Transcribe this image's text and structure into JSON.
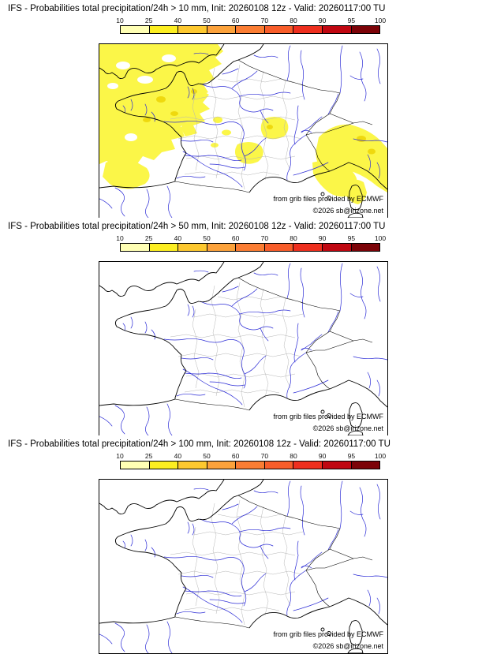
{
  "panels": [
    {
      "title": "IFS - Probabilities total precipitation/24h > 10 mm, Init: 20260108 12z - Valid: 20260117:00 TU",
      "threshold_mm": "10",
      "has_shading": true
    },
    {
      "title": "IFS - Probabilities total precipitation/24h > 50 mm, Init: 20260108 12z - Valid: 20260117:00 TU",
      "threshold_mm": "50",
      "has_shading": false
    },
    {
      "title": "IFS - Probabilities total precipitation/24h > 100 mm, Init: 20260108 12z - Valid: 20260117:00 TU",
      "threshold_mm": "100",
      "has_shading": false
    }
  ],
  "colorbar": {
    "tick_labels": [
      "10",
      "25",
      "40",
      "50",
      "60",
      "70",
      "80",
      "90",
      "95",
      "100"
    ],
    "segment_colors": [
      "#ffffb4",
      "#fcee21",
      "#fdc82f",
      "#fca23b",
      "#fb7d33",
      "#f85d2a",
      "#ee2f1e",
      "#c00711",
      "#7c0308"
    ],
    "unit": "%"
  },
  "credits": {
    "provider": "from grib files provided by ECMWF",
    "copyright": "©2026 sb@irizone.net"
  },
  "map_colors": {
    "coastline": "#000000",
    "department_border": "#b5b5b5",
    "river": "#2b2bd6",
    "shading_low": "#fbf648",
    "shading_mid": "#efd90e"
  }
}
